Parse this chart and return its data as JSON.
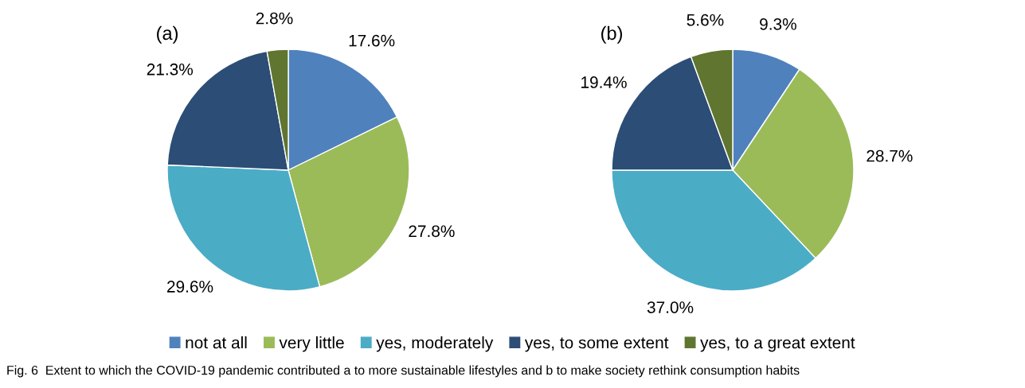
{
  "chart_data": [
    {
      "type": "pie",
      "title": "(a)",
      "categories": [
        "not at all",
        "very little",
        "yes, moderately",
        "yes, to some extent",
        "yes, to a great extent"
      ],
      "values": [
        17.6,
        27.8,
        29.6,
        21.3,
        2.8
      ],
      "value_labels": [
        "17.6%",
        "27.8%",
        "29.6%",
        "21.3%",
        "2.8%"
      ],
      "colors": [
        "#4f81bd",
        "#9bbb59",
        "#4bacc6",
        "#2c4d75",
        "#5f7530"
      ],
      "legend": "bottom",
      "annotations": [
        "Fig. 6  Extent to which the COVID-19 pandemic contributed a to more sustainable lifestyles and b to make society rethink consumption habits"
      ]
    },
    {
      "type": "pie",
      "title": "(b)",
      "categories": [
        null,
        null,
        null,
        null,
        null
      ],
      "values": [
        9.3,
        28.7,
        37.0,
        19.4,
        5.6
      ],
      "value_labels": [
        "9.3%",
        "28.7%",
        "37.0%",
        "19.4%",
        "5.6%"
      ],
      "colors": [
        "#4f81bd",
        "#9bbb59",
        "#4bacc6",
        "#2c4d75",
        "#5f7530"
      ]
    }
  ]
}
